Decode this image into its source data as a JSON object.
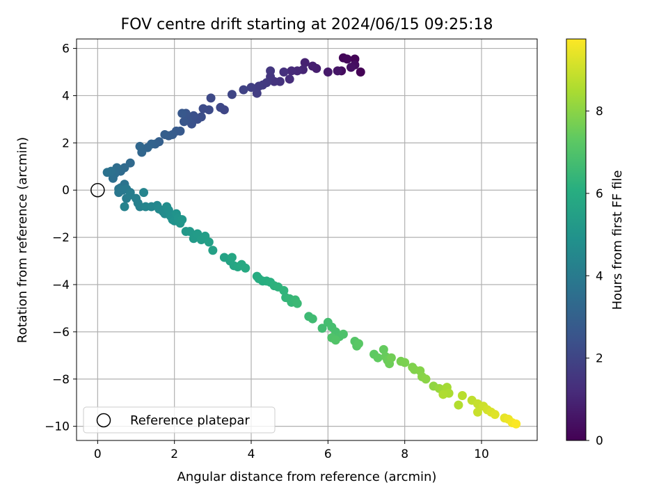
{
  "chart_data": {
    "type": "scatter",
    "title": "FOV centre drift starting at 2024/06/15 09:25:18",
    "xlabel": "Angular distance from reference (arcmin)",
    "ylabel": "Rotation from reference (arcmin)",
    "xlim": [
      -0.55,
      11.45
    ],
    "ylim": [
      -10.6,
      6.4
    ],
    "xticks": [
      0,
      2,
      4,
      6,
      8,
      10
    ],
    "yticks": [
      -10,
      -8,
      -6,
      -4,
      -2,
      0,
      2,
      4,
      6
    ],
    "grid": true,
    "colorbar": {
      "label": "Hours from first FF file",
      "range": [
        0,
        9.75
      ],
      "ticks": [
        0,
        2,
        4,
        6,
        8
      ],
      "colormap": "viridis"
    },
    "legend": {
      "position": "lower-left",
      "entries": [
        "Reference platepar"
      ]
    },
    "reference_point": {
      "x": 0,
      "y": 0
    },
    "series": [
      {
        "color_by": "hours",
        "points": [
          [
            6.85,
            5.0,
            0.05
          ],
          [
            6.7,
            5.55,
            0.1
          ],
          [
            6.4,
            5.6,
            0.15
          ],
          [
            6.5,
            5.55,
            0.2
          ],
          [
            6.35,
            5.05,
            0.3
          ],
          [
            6.7,
            5.3,
            0.35
          ],
          [
            6.6,
            5.2,
            0.45
          ],
          [
            6.25,
            5.05,
            0.55
          ],
          [
            6.0,
            5.0,
            0.7
          ],
          [
            5.7,
            5.15,
            0.8
          ],
          [
            5.6,
            5.25,
            0.85
          ],
          [
            5.4,
            5.4,
            0.9
          ],
          [
            5.35,
            5.1,
            1.0
          ],
          [
            5.2,
            5.05,
            1.1
          ],
          [
            5.05,
            5.05,
            1.15
          ],
          [
            5.0,
            4.7,
            1.25
          ],
          [
            4.85,
            5.0,
            1.35
          ],
          [
            4.75,
            4.6,
            1.4
          ],
          [
            4.6,
            4.6,
            1.45
          ],
          [
            4.5,
            4.8,
            1.5
          ],
          [
            4.5,
            5.05,
            1.55
          ],
          [
            4.4,
            4.55,
            1.6
          ],
          [
            4.3,
            4.45,
            1.65
          ],
          [
            4.2,
            4.4,
            1.7
          ],
          [
            4.15,
            4.1,
            1.75
          ],
          [
            4.0,
            4.35,
            1.8
          ],
          [
            3.8,
            4.25,
            1.9
          ],
          [
            3.5,
            4.05,
            2.0
          ],
          [
            3.3,
            3.4,
            2.05
          ],
          [
            3.2,
            3.5,
            2.1
          ],
          [
            2.95,
            3.9,
            2.15
          ],
          [
            2.9,
            3.4,
            2.2
          ],
          [
            2.75,
            3.45,
            2.25
          ],
          [
            2.7,
            3.1,
            2.3
          ],
          [
            2.6,
            3.0,
            2.35
          ],
          [
            2.5,
            3.15,
            2.4
          ],
          [
            2.45,
            2.8,
            2.45
          ],
          [
            2.35,
            3.0,
            2.5
          ],
          [
            2.3,
            3.25,
            2.55
          ],
          [
            2.25,
            2.9,
            2.6
          ],
          [
            2.2,
            3.25,
            2.65
          ],
          [
            2.15,
            2.5,
            2.7
          ],
          [
            2.05,
            2.5,
            2.75
          ],
          [
            1.95,
            2.35,
            2.8
          ],
          [
            1.85,
            2.3,
            2.85
          ],
          [
            1.75,
            2.35,
            2.9
          ],
          [
            1.6,
            2.05,
            2.95
          ],
          [
            1.5,
            1.95,
            3.0
          ],
          [
            1.4,
            1.95,
            3.1
          ],
          [
            1.3,
            1.8,
            3.15
          ],
          [
            1.15,
            1.6,
            3.2
          ],
          [
            1.1,
            1.85,
            3.25
          ],
          [
            0.85,
            1.15,
            3.3
          ],
          [
            0.7,
            0.95,
            3.35
          ],
          [
            0.6,
            0.8,
            3.4
          ],
          [
            0.5,
            0.95,
            3.45
          ],
          [
            0.45,
            0.7,
            3.5
          ],
          [
            0.4,
            0.5,
            3.55
          ],
          [
            0.35,
            0.8,
            3.6
          ],
          [
            0.25,
            0.75,
            3.65
          ],
          [
            0.7,
            0.25,
            3.7
          ],
          [
            0.6,
            0.1,
            3.75
          ],
          [
            0.55,
            0.05,
            3.8
          ],
          [
            0.55,
            -0.1,
            3.85
          ],
          [
            0.65,
            0.0,
            3.9
          ],
          [
            0.75,
            0.05,
            3.95
          ],
          [
            0.85,
            -0.1,
            4.0
          ],
          [
            0.75,
            -0.35,
            4.05
          ],
          [
            0.85,
            -0.2,
            4.1
          ],
          [
            1.0,
            -0.35,
            4.15
          ],
          [
            1.05,
            -0.55,
            4.2
          ],
          [
            1.1,
            -0.7,
            4.25
          ],
          [
            0.7,
            -0.7,
            4.3
          ],
          [
            1.2,
            -0.1,
            4.35
          ],
          [
            1.25,
            -0.7,
            4.4
          ],
          [
            1.4,
            -0.7,
            4.45
          ],
          [
            1.55,
            -0.65,
            4.5
          ],
          [
            1.6,
            -0.8,
            4.55
          ],
          [
            1.7,
            -0.9,
            4.6
          ],
          [
            1.75,
            -1.0,
            4.65
          ],
          [
            1.8,
            -0.7,
            4.7
          ],
          [
            1.85,
            -0.85,
            4.75
          ],
          [
            1.9,
            -1.1,
            4.8
          ],
          [
            1.95,
            -1.25,
            4.85
          ],
          [
            2.0,
            -1.3,
            4.9
          ],
          [
            2.05,
            -1.0,
            4.95
          ],
          [
            2.1,
            -1.2,
            5.0
          ],
          [
            2.15,
            -1.4,
            5.05
          ],
          [
            2.2,
            -1.25,
            5.1
          ],
          [
            2.3,
            -1.75,
            5.15
          ],
          [
            2.4,
            -1.75,
            5.2
          ],
          [
            2.5,
            -2.05,
            5.25
          ],
          [
            2.6,
            -1.85,
            5.3
          ],
          [
            2.7,
            -2.1,
            5.35
          ],
          [
            2.8,
            -1.95,
            5.4
          ],
          [
            2.9,
            -2.2,
            5.45
          ],
          [
            3.0,
            -2.55,
            5.5
          ],
          [
            3.3,
            -2.85,
            5.6
          ],
          [
            3.45,
            -3.0,
            5.65
          ],
          [
            3.55,
            -3.2,
            5.7
          ],
          [
            3.5,
            -2.85,
            5.75
          ],
          [
            3.65,
            -3.25,
            5.8
          ],
          [
            3.75,
            -3.15,
            5.85
          ],
          [
            3.85,
            -3.3,
            5.9
          ],
          [
            4.15,
            -3.65,
            5.95
          ],
          [
            4.2,
            -3.75,
            6.0
          ],
          [
            4.3,
            -3.85,
            6.05
          ],
          [
            4.4,
            -3.85,
            6.1
          ],
          [
            4.5,
            -3.9,
            6.15
          ],
          [
            4.6,
            -4.05,
            6.2
          ],
          [
            4.7,
            -4.1,
            6.25
          ],
          [
            4.85,
            -4.25,
            6.3
          ],
          [
            4.9,
            -4.55,
            6.35
          ],
          [
            5.0,
            -4.6,
            6.4
          ],
          [
            5.05,
            -4.75,
            6.45
          ],
          [
            5.15,
            -4.65,
            6.5
          ],
          [
            5.2,
            -4.8,
            6.55
          ],
          [
            5.5,
            -5.35,
            6.6
          ],
          [
            5.6,
            -5.45,
            6.65
          ],
          [
            5.85,
            -5.85,
            6.7
          ],
          [
            6.0,
            -5.6,
            6.75
          ],
          [
            6.1,
            -5.8,
            6.8
          ],
          [
            6.2,
            -6.0,
            6.85
          ],
          [
            6.3,
            -6.2,
            6.9
          ],
          [
            6.4,
            -6.1,
            6.95
          ],
          [
            6.1,
            -6.25,
            7.0
          ],
          [
            6.2,
            -6.35,
            7.05
          ],
          [
            6.7,
            -6.4,
            7.1
          ],
          [
            6.75,
            -6.6,
            7.15
          ],
          [
            6.8,
            -6.5,
            7.2
          ],
          [
            7.2,
            -6.95,
            7.3
          ],
          [
            7.3,
            -7.1,
            7.35
          ],
          [
            7.45,
            -6.75,
            7.4
          ],
          [
            7.5,
            -7.05,
            7.45
          ],
          [
            7.55,
            -7.2,
            7.5
          ],
          [
            7.6,
            -7.35,
            7.55
          ],
          [
            7.65,
            -7.1,
            7.6
          ],
          [
            7.9,
            -7.25,
            7.7
          ],
          [
            8.0,
            -7.3,
            7.75
          ],
          [
            8.2,
            -7.5,
            7.8
          ],
          [
            8.25,
            -7.6,
            7.85
          ],
          [
            8.4,
            -7.65,
            7.9
          ],
          [
            8.45,
            -7.9,
            7.95
          ],
          [
            8.55,
            -8.0,
            8.0
          ],
          [
            8.75,
            -8.3,
            8.1
          ],
          [
            8.9,
            -8.4,
            8.2
          ],
          [
            9.0,
            -8.45,
            8.3
          ],
          [
            9.1,
            -8.35,
            8.4
          ],
          [
            9.15,
            -8.6,
            8.5
          ],
          [
            9.0,
            -8.65,
            8.55
          ],
          [
            9.4,
            -9.1,
            8.6
          ],
          [
            9.5,
            -8.7,
            8.7
          ],
          [
            9.75,
            -8.9,
            8.8
          ],
          [
            9.9,
            -9.05,
            8.9
          ],
          [
            9.9,
            -9.4,
            8.95
          ],
          [
            10.05,
            -9.15,
            9.0
          ],
          [
            10.15,
            -9.3,
            9.1
          ],
          [
            10.25,
            -9.4,
            9.2
          ],
          [
            10.35,
            -9.5,
            9.3
          ],
          [
            10.6,
            -9.65,
            9.4
          ],
          [
            10.7,
            -9.7,
            9.5
          ],
          [
            10.8,
            -9.85,
            9.6
          ],
          [
            10.9,
            -9.9,
            9.7
          ]
        ]
      }
    ]
  }
}
